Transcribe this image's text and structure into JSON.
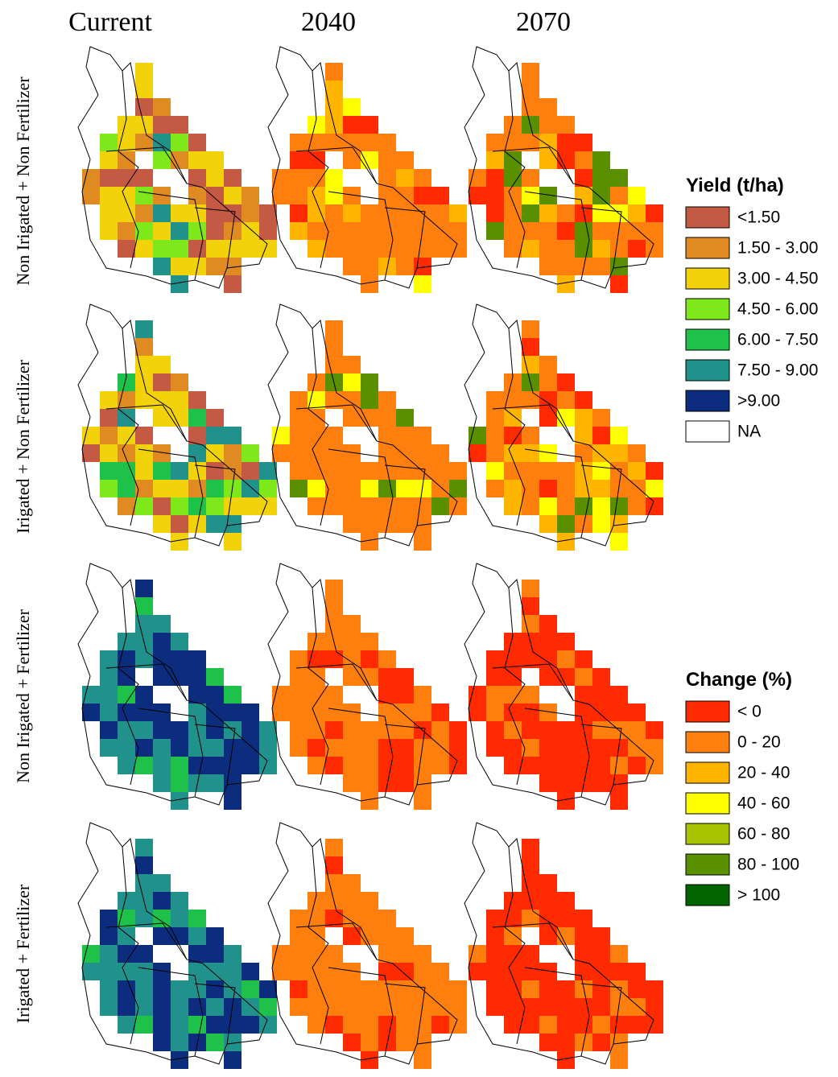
{
  "columns": [
    "Current",
    "2040",
    "2070"
  ],
  "rows": [
    "Non Irigated + Non Fertilizer",
    "Irigated + Non Fertilizer",
    "Non Irigated + Fertilizer",
    "Irigated + Fertilizer"
  ],
  "legends": [
    {
      "title": "Yield (t/ha)",
      "items": [
        {
          "label": "<1.50",
          "color": "#c55a44"
        },
        {
          "label": "1.50 - 3.00",
          "color": "#e08a22"
        },
        {
          "label": "3.00 - 4.50",
          "color": "#f2d20a"
        },
        {
          "label": "4.50 - 6.00",
          "color": "#7ee81a"
        },
        {
          "label": "6.00 - 7.50",
          "color": "#1ec24a"
        },
        {
          "label": "7.50 - 9.00",
          "color": "#21918c"
        },
        {
          "label": ">9.00",
          "color": "#0c2d7e"
        },
        {
          "label": "NA",
          "color": "#ffffff"
        }
      ]
    },
    {
      "title": "Change (%)",
      "items": [
        {
          "label": "< 0",
          "color": "#ff2a00"
        },
        {
          "label": "0 - 20",
          "color": "#ff7f0e"
        },
        {
          "label": "20 - 40",
          "color": "#ffb400"
        },
        {
          "label": "40 - 60",
          "color": "#ffff00"
        },
        {
          "label": "60 - 80",
          "color": "#a8c400"
        },
        {
          "label": "80 - 100",
          "color": "#5a8f00"
        },
        {
          "label": "> 100",
          "color": "#006400"
        }
      ]
    }
  ]
}
